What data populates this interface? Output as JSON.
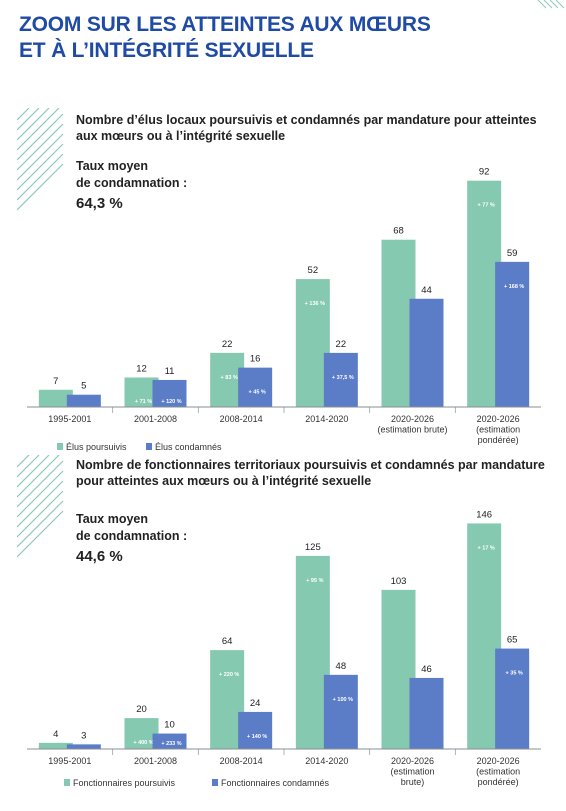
{
  "page": {
    "title_line1": "ZOOM SUR LES ATTEINTES AUX MŒURS",
    "title_line2": "ET À L’INTÉGRITÉ SEXUELLE"
  },
  "colors": {
    "title": "#1f4ba5",
    "poursuivis": "#86c9b1",
    "condamnes": "#5b7cc6",
    "stripes": "#8ccab3"
  },
  "chart_data": [
    {
      "type": "bar",
      "title": "Nombre d’élus locaux poursuivis et condamnés par mandature pour atteintes aux mœurs ou à l’intégrité sexuelle",
      "avg_label_line1": "Taux moyen",
      "avg_label_line2": "de condamnation :",
      "avg_value": "64,3 %",
      "categories": [
        [
          "1995-2001"
        ],
        [
          "2001-2008"
        ],
        [
          "2008-2014"
        ],
        [
          "2014-2020"
        ],
        [
          "2020-2026",
          "(estimation brute)"
        ],
        [
          "2020-2026",
          "(estimation",
          "pondérée)"
        ]
      ],
      "series": [
        {
          "name": "Élus poursuivis",
          "color": "#86c9b1",
          "values": [
            7,
            12,
            22,
            52,
            68,
            92
          ],
          "changes": [
            "",
            "+ 71 %",
            "+ 83 %",
            "+ 136 %",
            "",
            "+ 77 %"
          ]
        },
        {
          "name": "Élus condamnés",
          "color": "#5b7cc6",
          "values": [
            5,
            11,
            16,
            22,
            44,
            59
          ],
          "changes": [
            "",
            "+ 120 %",
            "+ 45 %",
            "+ 37,5 %",
            "",
            "+ 168 %"
          ]
        }
      ],
      "legend_position": "bottom-left",
      "grid": false
    },
    {
      "type": "bar",
      "title": "Nombre de fonctionnaires territoriaux poursuivis et condamnés par mandature pour atteintes aux mœurs ou à l’intégrité sexuelle",
      "avg_label_line1": "Taux moyen",
      "avg_label_line2": "de condamnation :",
      "avg_value": "44,6 %",
      "categories": [
        [
          "1995-2001"
        ],
        [
          "2001-2008"
        ],
        [
          "2008-2014"
        ],
        [
          "2014-2020"
        ],
        [
          "2020-2026",
          "(estimation",
          "brute)"
        ],
        [
          "2020-2026",
          "(estimation",
          "pondérée)"
        ]
      ],
      "series": [
        {
          "name": "Fonctionnaires poursuivis",
          "color": "#86c9b1",
          "values": [
            4,
            20,
            64,
            125,
            103,
            146
          ],
          "changes": [
            "",
            "+ 400 %",
            "+ 220 %",
            "+ 95 %",
            "",
            "+ 17 %"
          ]
        },
        {
          "name": "Fonctionnaires condamnés",
          "color": "#5b7cc6",
          "values": [
            3,
            10,
            24,
            48,
            46,
            65
          ],
          "changes": [
            "",
            "+ 233 %",
            "+ 140 %",
            "+ 100 %",
            "",
            "+ 35 %"
          ]
        }
      ],
      "legend_position": "bottom-left",
      "grid": false
    }
  ]
}
